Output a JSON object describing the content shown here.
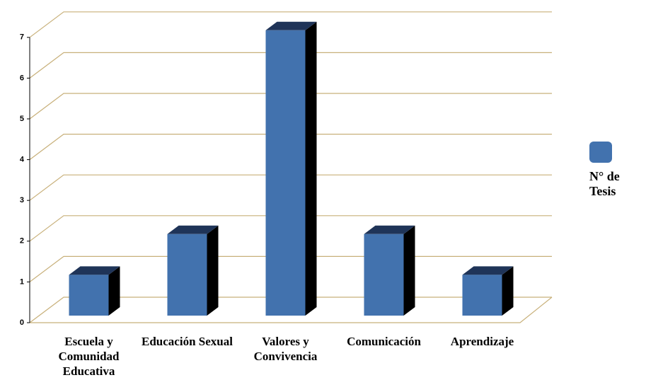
{
  "chart_data": {
    "type": "bar",
    "categories": [
      "Escuela y Comunidad Educativa",
      "Educación Sexual",
      "Valores y Convivencia",
      "Comunicación",
      "Aprendizaje"
    ],
    "series": [
      {
        "name": "N° de Tesis",
        "color": "#4272ae",
        "values": [
          1,
          2,
          7,
          2,
          1
        ]
      }
    ],
    "ylim": [
      0,
      8
    ],
    "yticks": [
      0,
      1,
      2,
      3,
      4,
      5,
      6,
      7
    ],
    "grid": true,
    "legend": "right"
  }
}
